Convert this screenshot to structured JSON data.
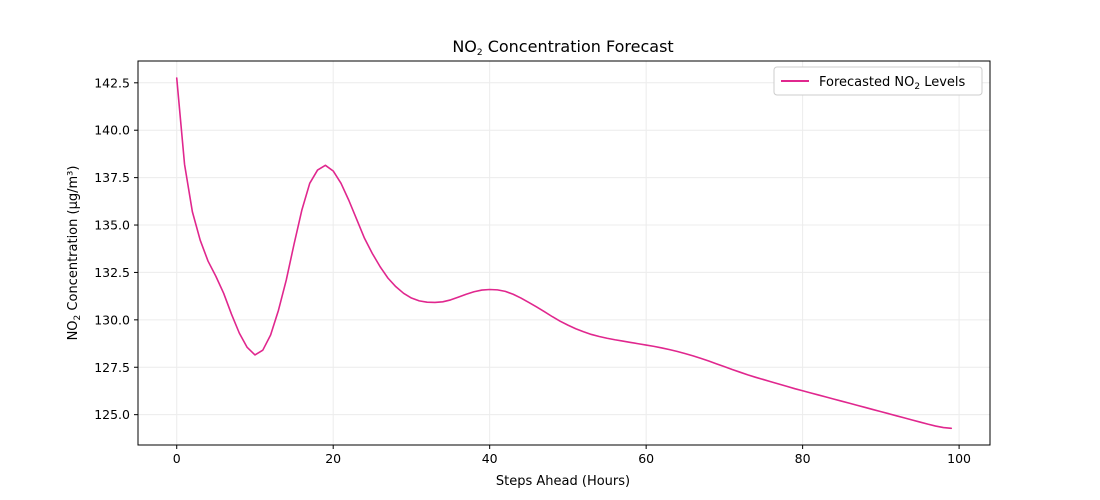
{
  "chart_data": {
    "type": "line",
    "title_main": "NO",
    "title_sub": "2",
    "title_rest": " Concentration Forecast",
    "xlabel": "Steps Ahead (Hours)",
    "ylabel_main": "NO",
    "ylabel_sub": "2",
    "ylabel_rest": " Concentration (μg/m³)",
    "xlim": [
      -4.95,
      103.95
    ],
    "ylim": [
      123.4,
      143.65
    ],
    "xticks": [
      0,
      20,
      40,
      60,
      80,
      100
    ],
    "yticks": [
      125.0,
      127.5,
      130.0,
      132.5,
      135.0,
      137.5,
      140.0,
      142.5
    ],
    "ytick_labels": [
      "125.0",
      "127.5",
      "130.0",
      "132.5",
      "135.0",
      "137.5",
      "140.0",
      "142.5"
    ],
    "grid": true,
    "legend_position": "top-right",
    "series": [
      {
        "name_main": "Forecasted NO",
        "name_sub": "2",
        "name_rest": " Levels",
        "color": "#e0278e",
        "x": [
          0,
          1,
          2,
          3,
          4,
          5,
          6,
          7,
          8,
          9,
          10,
          11,
          12,
          13,
          14,
          15,
          16,
          17,
          18,
          19,
          20,
          21,
          22,
          23,
          24,
          25,
          26,
          27,
          28,
          29,
          30,
          31,
          32,
          33,
          34,
          35,
          36,
          37,
          38,
          39,
          40,
          41,
          42,
          43,
          44,
          45,
          46,
          47,
          48,
          49,
          50,
          51,
          52,
          53,
          54,
          55,
          56,
          57,
          58,
          59,
          60,
          61,
          62,
          63,
          64,
          65,
          66,
          67,
          68,
          69,
          70,
          71,
          72,
          73,
          74,
          75,
          76,
          77,
          78,
          79,
          80,
          81,
          82,
          83,
          84,
          85,
          86,
          87,
          88,
          89,
          90,
          91,
          92,
          93,
          94,
          95,
          96,
          97,
          98,
          99
        ],
        "values": [
          142.75,
          138.2,
          135.7,
          134.2,
          133.1,
          132.3,
          131.4,
          130.3,
          129.3,
          128.55,
          128.15,
          128.4,
          129.2,
          130.5,
          132.1,
          134.0,
          135.8,
          137.2,
          137.9,
          138.15,
          137.85,
          137.2,
          136.3,
          135.3,
          134.3,
          133.5,
          132.8,
          132.2,
          131.75,
          131.4,
          131.15,
          131.0,
          130.93,
          130.92,
          130.95,
          131.05,
          131.2,
          131.35,
          131.48,
          131.57,
          131.6,
          131.58,
          131.5,
          131.35,
          131.15,
          130.92,
          130.68,
          130.43,
          130.17,
          129.93,
          129.72,
          129.53,
          129.37,
          129.23,
          129.12,
          129.03,
          128.95,
          128.88,
          128.81,
          128.74,
          128.67,
          128.6,
          128.52,
          128.43,
          128.33,
          128.22,
          128.1,
          127.97,
          127.83,
          127.68,
          127.53,
          127.38,
          127.24,
          127.1,
          126.97,
          126.85,
          126.73,
          126.61,
          126.49,
          126.37,
          126.26,
          126.15,
          126.04,
          125.93,
          125.82,
          125.71,
          125.6,
          125.49,
          125.38,
          125.27,
          125.16,
          125.05,
          124.94,
          124.83,
          124.72,
          124.61,
          124.5,
          124.4,
          124.32,
          124.28
        ]
      }
    ]
  }
}
